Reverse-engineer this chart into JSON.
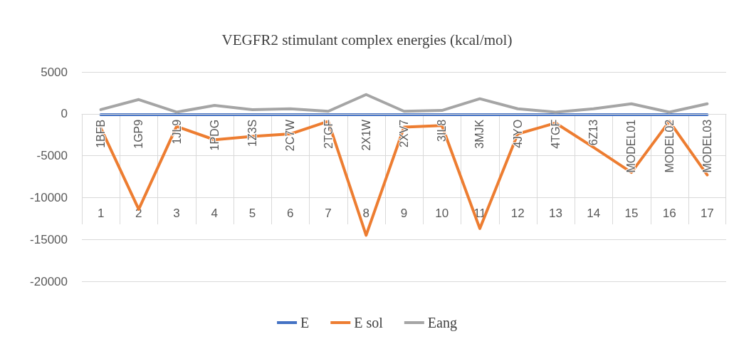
{
  "chart_data": {
    "type": "line",
    "title": "VEGFR2 stimulant complex energies (kcal/mol)",
    "categories": [
      "1BFB",
      "1GP9",
      "1JL9",
      "1PDG",
      "1Z3S",
      "2C7W",
      "2TGF",
      "2X1W",
      "2XV7",
      "3IL8",
      "3MJK",
      "4JYO",
      "4TGF",
      "6Z13",
      "MODEL01",
      "MODEL02",
      "MODEL03"
    ],
    "annotations": [
      "1",
      "2",
      "3",
      "4",
      "5",
      "6",
      "7",
      "8",
      "9",
      "10",
      "11",
      "12",
      "13",
      "14",
      "15",
      "16",
      "17"
    ],
    "series": [
      {
        "name": "E",
        "color": "#4472c4",
        "values": [
          -100,
          -100,
          -100,
          -100,
          -100,
          -100,
          -100,
          -100,
          -100,
          -100,
          -100,
          -100,
          -100,
          -100,
          -100,
          -100,
          -100
        ]
      },
      {
        "name": "E sol",
        "color": "#ed7d31",
        "values": [
          -1700,
          -11400,
          -1500,
          -3100,
          -2700,
          -2400,
          -900,
          -14500,
          -1600,
          -1400,
          -13700,
          -2400,
          -1100,
          -4000,
          -7000,
          -900,
          -7300
        ]
      },
      {
        "name": "Eang",
        "color": "#a5a5a5",
        "values": [
          500,
          1700,
          200,
          1000,
          500,
          600,
          300,
          2300,
          300,
          400,
          1800,
          600,
          200,
          600,
          1200,
          200,
          1200
        ]
      }
    ],
    "ylim": [
      -20000,
      5000
    ],
    "yticks": [
      -20000,
      -15000,
      -10000,
      -5000,
      0,
      5000
    ],
    "grid": "y",
    "legend": "bottom",
    "marker": "none",
    "line_style": "solid"
  }
}
